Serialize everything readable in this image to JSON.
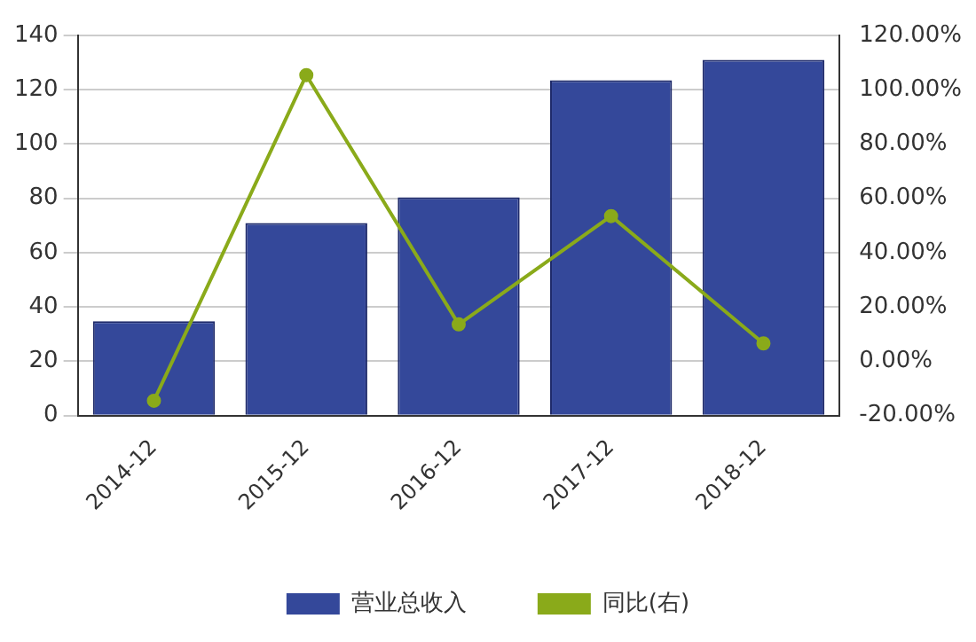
{
  "chart_data": {
    "type": "bar",
    "categories": [
      "2014-12",
      "2015-12",
      "2016-12",
      "2017-12",
      "2018-12"
    ],
    "series": [
      {
        "name": "营业总收入",
        "color": "#34489a",
        "values": [
          34.8,
          70.9,
          80.4,
          123.5,
          131
        ]
      },
      {
        "name": "同比(右)",
        "type": "line",
        "axis": "y2",
        "color": "#8aaa1a",
        "marker": "circle",
        "values": [
          -14.5,
          105.4,
          13.6,
          53.5,
          6.6
        ]
      }
    ],
    "ylim": [
      0,
      140
    ],
    "yticks": [
      0,
      20,
      40,
      60,
      80,
      100,
      120,
      140
    ],
    "y2lim": [
      -20,
      120
    ],
    "y2ticks": [
      {
        "value": -20,
        "label": "-20.00%"
      },
      {
        "value": 0,
        "label": "0.00%"
      },
      {
        "value": 20,
        "label": "20.00%"
      },
      {
        "value": 40,
        "label": "40.00%"
      },
      {
        "value": 60,
        "label": "60.00%"
      },
      {
        "value": 80,
        "label": "80.00%"
      },
      {
        "value": 100,
        "label": "100.00%"
      },
      {
        "value": 120,
        "label": "120.00%"
      }
    ],
    "grid": "y",
    "legend": "bottom"
  }
}
